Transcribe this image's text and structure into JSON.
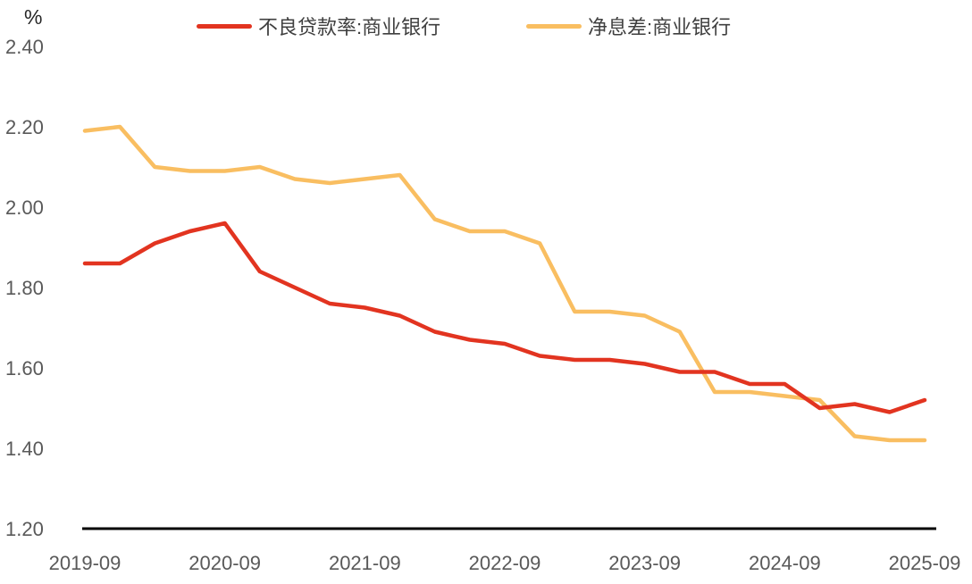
{
  "y_axis_unit": "%",
  "legend": {
    "items": [
      {
        "label": "不良贷款率:商业银行",
        "color": "#e23420"
      },
      {
        "label": "净息差:商业银行",
        "color": "#f9be61"
      }
    ]
  },
  "axis_color": "#000000",
  "tick_color": "#595959",
  "chart_data": {
    "type": "line",
    "title": "",
    "ylabel": "%",
    "xlabel": "",
    "ylim": [
      1.2,
      2.4
    ],
    "grid": false,
    "legend_position": "top",
    "x": [
      "2019-09",
      "2019-12",
      "2020-03",
      "2020-06",
      "2020-09",
      "2020-12",
      "2021-03",
      "2021-06",
      "2021-09",
      "2021-12",
      "2022-03",
      "2022-06",
      "2022-09",
      "2022-12",
      "2023-03",
      "2023-06",
      "2023-09",
      "2023-12",
      "2024-03",
      "2024-06",
      "2024-09",
      "2024-12",
      "2025-03",
      "2025-06",
      "2025-09"
    ],
    "series": [
      {
        "name": "不良贷款率:商业银行",
        "color": "#e23420",
        "values": [
          1.86,
          1.86,
          1.91,
          1.94,
          1.96,
          1.84,
          1.8,
          1.76,
          1.75,
          1.73,
          1.69,
          1.67,
          1.66,
          1.63,
          1.62,
          1.62,
          1.61,
          1.59,
          1.59,
          1.56,
          1.56,
          1.5,
          1.51,
          1.49,
          1.52
        ]
      },
      {
        "name": "净息差:商业银行",
        "color": "#f9be61",
        "values": [
          2.19,
          2.2,
          2.1,
          2.09,
          2.09,
          2.1,
          2.07,
          2.06,
          2.07,
          2.08,
          1.97,
          1.94,
          1.94,
          1.91,
          1.74,
          1.74,
          1.73,
          1.69,
          1.54,
          1.54,
          1.53,
          1.52,
          1.43,
          1.42,
          1.42
        ]
      }
    ],
    "yticks": [
      "2.40",
      "2.20",
      "2.00",
      "1.80",
      "1.60",
      "1.40",
      "1.20"
    ],
    "xticks": [
      "2019-09",
      "2020-09",
      "2021-09",
      "2022-09",
      "2023-09",
      "2024-09",
      "2025-09"
    ]
  }
}
